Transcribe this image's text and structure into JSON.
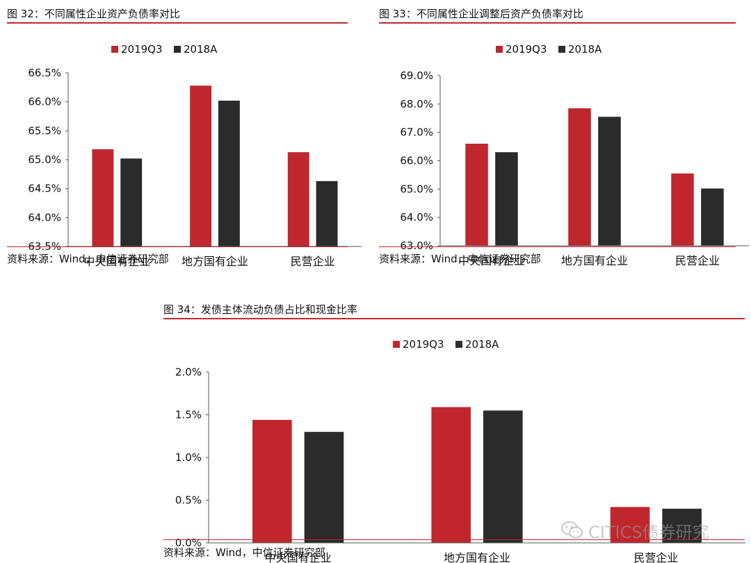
{
  "colors": {
    "series_2019": "#c0272d",
    "series_2018": "#2b2b2b",
    "rule": "#c0272d"
  },
  "watermark": {
    "text": "CITICS债券研究",
    "icon": "wechat-icon"
  },
  "figures": [
    {
      "title": "图 32：不同属性企业资产负债率对比",
      "source": "资料来源：Wind，中信证券研究部"
    },
    {
      "title": "图 33：不同属性企业调整后资产负债率对比",
      "source": "资料来源：Wind，中信证券研究部"
    },
    {
      "title": "图 34：发债主体流动负债占比和现金比率",
      "source": "资料来源：Wind，中信证券研究部"
    }
  ],
  "chart_data": [
    {
      "type": "bar",
      "categories": [
        "中央国有企业",
        "地方国有企业",
        "民营企业"
      ],
      "series": [
        {
          "name": "2019Q3",
          "color": "#c0272d",
          "values": [
            65.18,
            66.28,
            65.13
          ]
        },
        {
          "name": "2018A",
          "color": "#2b2b2b",
          "values": [
            65.02,
            66.02,
            64.63
          ]
        }
      ],
      "ylim": [
        63.5,
        66.5
      ],
      "yticks": [
        "63.5%",
        "64.0%",
        "64.5%",
        "65.0%",
        "65.5%",
        "66.0%",
        "66.5%"
      ],
      "legend": "top-center",
      "grid": false
    },
    {
      "type": "bar",
      "categories": [
        "中央国有企业",
        "地方国有企业",
        "民营企业"
      ],
      "series": [
        {
          "name": "2019Q3",
          "color": "#c0272d",
          "values": [
            66.6,
            67.85,
            65.55
          ]
        },
        {
          "name": "2018A",
          "color": "#2b2b2b",
          "values": [
            66.3,
            67.55,
            65.02
          ]
        }
      ],
      "ylim": [
        63.0,
        69.0
      ],
      "yticks": [
        "63.0%",
        "64.0%",
        "65.0%",
        "66.0%",
        "67.0%",
        "68.0%",
        "69.0%"
      ],
      "legend": "top-center",
      "grid": false
    },
    {
      "type": "bar",
      "categories": [
        "中央国有企业",
        "地方国有企业",
        "民营企业"
      ],
      "series": [
        {
          "name": "2019Q3",
          "color": "#c0272d",
          "values": [
            1.44,
            1.59,
            0.42
          ]
        },
        {
          "name": "2018A",
          "color": "#2b2b2b",
          "values": [
            1.3,
            1.55,
            0.4
          ]
        }
      ],
      "ylim": [
        0.0,
        2.0
      ],
      "yticks": [
        "0.0%",
        "0.5%",
        "1.0%",
        "1.5%",
        "2.0%"
      ],
      "legend": "top-center",
      "grid": false
    }
  ]
}
